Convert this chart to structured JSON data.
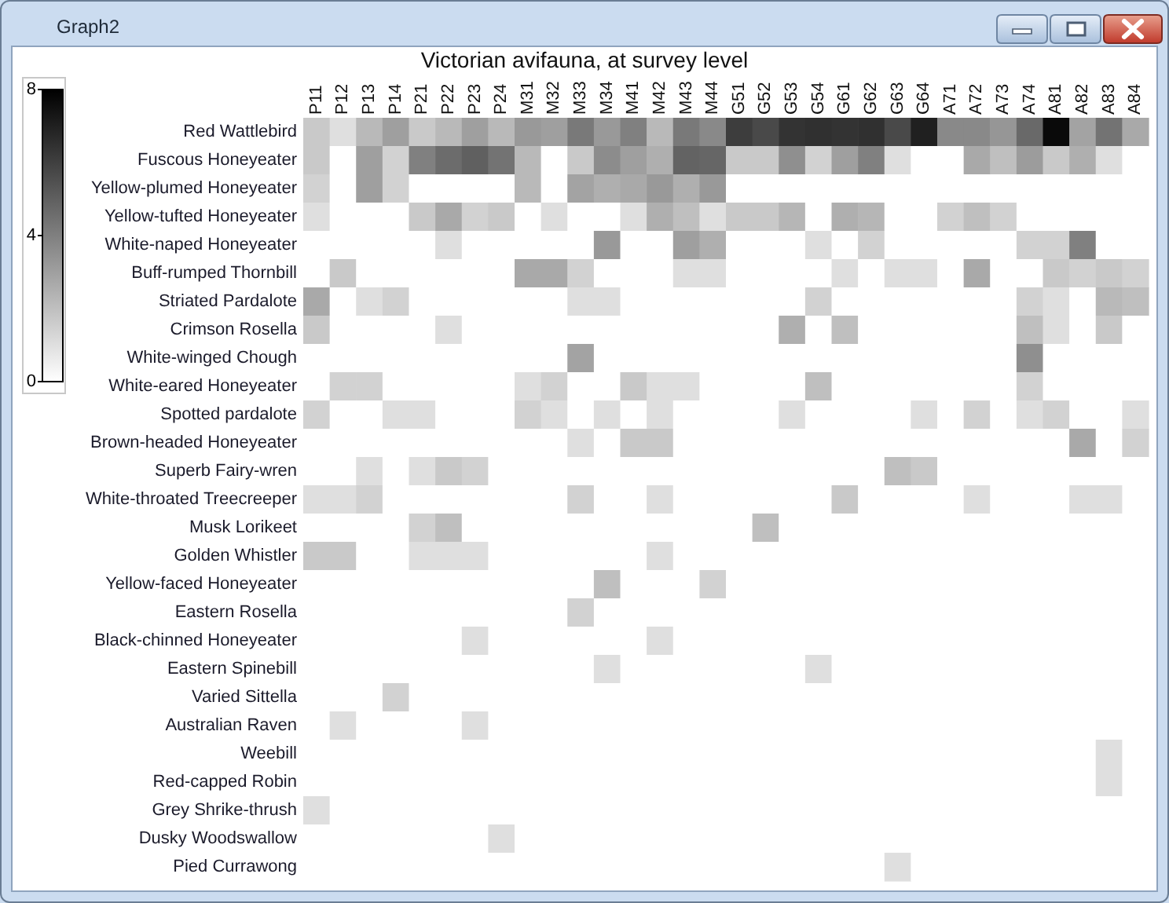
{
  "chart_data": {
    "type": "heatmap",
    "title": "Victorian avifauna, at survey level",
    "annotations": [
      "Graph2"
    ],
    "categories": [
      "P11",
      "P12",
      "P13",
      "P14",
      "P21",
      "P22",
      "P23",
      "P24",
      "M31",
      "M32",
      "M33",
      "M34",
      "M41",
      "M42",
      "M43",
      "M44",
      "G51",
      "G52",
      "G53",
      "G54",
      "G61",
      "G62",
      "G63",
      "G64",
      "A71",
      "A72",
      "A73",
      "A74",
      "A81",
      "A82",
      "A83",
      "A84"
    ],
    "y_categories": [
      "Red Wattlebird",
      "Fuscous Honeyeater",
      "Yellow-plumed Honeyeater",
      "Yellow-tufted Honeyeater",
      "White-naped Honeyeater",
      "Buff-rumped Thornbill",
      "Striated Pardalote",
      "Crimson Rosella",
      "White-winged Chough",
      "White-eared Honeyeater",
      "Spotted pardalote",
      "Brown-headed Honeyeater",
      "Superb Fairy-wren",
      "White-throated Treecreeper",
      "Musk Lorikeet",
      "Golden Whistler",
      "Yellow-faced Honeyeater",
      "Eastern Rosella",
      "Black-chinned Honeyeater",
      "Eastern Spinebill",
      "Varied Sittella",
      "Australian Raven",
      "Weebill",
      "Red-capped Robin",
      "Grey Shrike-thrush",
      "Dusky Woodswallow",
      "Pied Currawong"
    ],
    "cells": [
      [
        1.7,
        1,
        2.2,
        3,
        1.7,
        2.2,
        3,
        2.2,
        3.2,
        3,
        4.2,
        3.2,
        4,
        2.2,
        4.2,
        3.7,
        6.1,
        5.7,
        6.4,
        6.5,
        6.4,
        6.5,
        5.7,
        7,
        3.7,
        3.7,
        3.3,
        4.7,
        7.7,
        2.9,
        4.4,
        2.7
      ],
      [
        1.7,
        0,
        3,
        1.4,
        4,
        4.6,
        5,
        4.4,
        2.2,
        0,
        1.7,
        3.6,
        3,
        2.5,
        4.9,
        4.8,
        1.7,
        1.7,
        3.5,
        1.4,
        3,
        4,
        1,
        0,
        0,
        2.7,
        2,
        3.1,
        1.7,
        2.5,
        1,
        0
      ],
      [
        1.4,
        0,
        3,
        1.4,
        0,
        0,
        0,
        0,
        2.2,
        0,
        2.9,
        2.5,
        2.7,
        3.2,
        2.5,
        3.2,
        0,
        0,
        0,
        0,
        0,
        0,
        0,
        0,
        0,
        0,
        0,
        0,
        0,
        0,
        0,
        0
      ],
      [
        1,
        0,
        0,
        0,
        1.7,
        2.7,
        1.4,
        1.7,
        0,
        1,
        0,
        0,
        1,
        2.5,
        2,
        1,
        1.7,
        1.7,
        2.3,
        0,
        2.5,
        2.3,
        0,
        0,
        1.4,
        2,
        1.4,
        0,
        0,
        0,
        0,
        0
      ],
      [
        0,
        0,
        0,
        0,
        0,
        1,
        0,
        0,
        0,
        0,
        0,
        3.2,
        0,
        0,
        3,
        2.5,
        0,
        0,
        0,
        1,
        0,
        1.4,
        0,
        0,
        0,
        0,
        0,
        1.4,
        1.4,
        4,
        0,
        0
      ],
      [
        0,
        1.7,
        0,
        0,
        0,
        0,
        0,
        0,
        2.7,
        2.7,
        1.4,
        0,
        0,
        0,
        1,
        1,
        0,
        0,
        0,
        0,
        1,
        0,
        1,
        1,
        0,
        2.7,
        0,
        0,
        1.7,
        1.4,
        1.7,
        1.4
      ],
      [
        2.7,
        0,
        1,
        1.4,
        0,
        0,
        0,
        0,
        0,
        0,
        1,
        1,
        0,
        0,
        0,
        0,
        0,
        0,
        0,
        1.4,
        0,
        0,
        0,
        0,
        0,
        0,
        0,
        1.4,
        1,
        0,
        2.2,
        2
      ],
      [
        1.7,
        0,
        0,
        0,
        0,
        1,
        0,
        0,
        0,
        0,
        0,
        0,
        0,
        0,
        0,
        0,
        0,
        0,
        2.5,
        0,
        2,
        0,
        0,
        0,
        0,
        0,
        0,
        2,
        1,
        0,
        1.7,
        0
      ],
      [
        0,
        0,
        0,
        0,
        0,
        0,
        0,
        0,
        0,
        0,
        2.9,
        0,
        0,
        0,
        0,
        0,
        0,
        0,
        0,
        0,
        0,
        0,
        0,
        0,
        0,
        0,
        0,
        3.5,
        0,
        0,
        0,
        0
      ],
      [
        0,
        1.4,
        1.4,
        0,
        0,
        0,
        0,
        0,
        1,
        1.4,
        0,
        0,
        1.7,
        1,
        1,
        0,
        0,
        0,
        0,
        2,
        0,
        0,
        0,
        0,
        0,
        0,
        0,
        1.4,
        0,
        0,
        0,
        0
      ],
      [
        1.4,
        0,
        0,
        1,
        1,
        0,
        0,
        0,
        1.4,
        1,
        0,
        1,
        0,
        1,
        0,
        0,
        0,
        0,
        1,
        0,
        0,
        0,
        0,
        1,
        0,
        1.4,
        0,
        1,
        1.4,
        0,
        0,
        1
      ],
      [
        0,
        0,
        0,
        0,
        0,
        0,
        0,
        0,
        0,
        0,
        1,
        0,
        1.7,
        1.7,
        0,
        0,
        0,
        0,
        0,
        0,
        0,
        0,
        0,
        0,
        0,
        0,
        0,
        0,
        0,
        2.7,
        0,
        1.4
      ],
      [
        0,
        0,
        1,
        0,
        1,
        1.7,
        1.4,
        0,
        0,
        0,
        0,
        0,
        0,
        0,
        0,
        0,
        0,
        0,
        0,
        0,
        0,
        0,
        2,
        1.7,
        0,
        0,
        0,
        0,
        0,
        0,
        0,
        0
      ],
      [
        1,
        1,
        1.4,
        0,
        0,
        0,
        0,
        0,
        0,
        0,
        1.4,
        0,
        0,
        1,
        0,
        0,
        0,
        0,
        0,
        0,
        1.7,
        0,
        0,
        0,
        0,
        1,
        0,
        0,
        0,
        1,
        1,
        0
      ],
      [
        0,
        0,
        0,
        0,
        1.4,
        2,
        0,
        0,
        0,
        0,
        0,
        0,
        0,
        0,
        0,
        0,
        0,
        2,
        0,
        0,
        0,
        0,
        0,
        0,
        0,
        0,
        0,
        0,
        0,
        0,
        0,
        0
      ],
      [
        1.7,
        1.7,
        0,
        0,
        1,
        1,
        1,
        0,
        0,
        0,
        0,
        0,
        0,
        1,
        0,
        0,
        0,
        0,
        0,
        0,
        0,
        0,
        0,
        0,
        0,
        0,
        0,
        0,
        0,
        0,
        0,
        0
      ],
      [
        0,
        0,
        0,
        0,
        0,
        0,
        0,
        0,
        0,
        0,
        0,
        2,
        0,
        0,
        0,
        1.4,
        0,
        0,
        0,
        0,
        0,
        0,
        0,
        0,
        0,
        0,
        0,
        0,
        0,
        0,
        0,
        0
      ],
      [
        0,
        0,
        0,
        0,
        0,
        0,
        0,
        0,
        0,
        0,
        1.4,
        0,
        0,
        0,
        0,
        0,
        0,
        0,
        0,
        0,
        0,
        0,
        0,
        0,
        0,
        0,
        0,
        0,
        0,
        0,
        0,
        0
      ],
      [
        0,
        0,
        0,
        0,
        0,
        0,
        1,
        0,
        0,
        0,
        0,
        0,
        0,
        1,
        0,
        0,
        0,
        0,
        0,
        0,
        0,
        0,
        0,
        0,
        0,
        0,
        0,
        0,
        0,
        0,
        0,
        0
      ],
      [
        0,
        0,
        0,
        0,
        0,
        0,
        0,
        0,
        0,
        0,
        0,
        1,
        0,
        0,
        0,
        0,
        0,
        0,
        0,
        1,
        0,
        0,
        0,
        0,
        0,
        0,
        0,
        0,
        0,
        0,
        0,
        0
      ],
      [
        0,
        0,
        0,
        1.4,
        0,
        0,
        0,
        0,
        0,
        0,
        0,
        0,
        0,
        0,
        0,
        0,
        0,
        0,
        0,
        0,
        0,
        0,
        0,
        0,
        0,
        0,
        0,
        0,
        0,
        0,
        0,
        0
      ],
      [
        0,
        1,
        0,
        0,
        0,
        0,
        1,
        0,
        0,
        0,
        0,
        0,
        0,
        0,
        0,
        0,
        0,
        0,
        0,
        0,
        0,
        0,
        0,
        0,
        0,
        0,
        0,
        0,
        0,
        0,
        0,
        0
      ],
      [
        0,
        0,
        0,
        0,
        0,
        0,
        0,
        0,
        0,
        0,
        0,
        0,
        0,
        0,
        0,
        0,
        0,
        0,
        0,
        0,
        0,
        0,
        0,
        0,
        0,
        0,
        0,
        0,
        0,
        0,
        1,
        0
      ],
      [
        0,
        0,
        0,
        0,
        0,
        0,
        0,
        0,
        0,
        0,
        0,
        0,
        0,
        0,
        0,
        0,
        0,
        0,
        0,
        0,
        0,
        0,
        0,
        0,
        0,
        0,
        0,
        0,
        0,
        0,
        1,
        0
      ],
      [
        1,
        0,
        0,
        0,
        0,
        0,
        0,
        0,
        0,
        0,
        0,
        0,
        0,
        0,
        0,
        0,
        0,
        0,
        0,
        0,
        0,
        0,
        0,
        0,
        0,
        0,
        0,
        0,
        0,
        0,
        0,
        0
      ],
      [
        0,
        0,
        0,
        0,
        0,
        0,
        0,
        1,
        0,
        0,
        0,
        0,
        0,
        0,
        0,
        0,
        0,
        0,
        0,
        0,
        0,
        0,
        0,
        0,
        0,
        0,
        0,
        0,
        0,
        0,
        0,
        0
      ],
      [
        0,
        0,
        0,
        0,
        0,
        0,
        0,
        0,
        0,
        0,
        0,
        0,
        0,
        0,
        0,
        0,
        0,
        0,
        0,
        0,
        0,
        0,
        1,
        0,
        0,
        0,
        0,
        0,
        0,
        0,
        0,
        0
      ]
    ],
    "clim": [
      0,
      8
    ],
    "cticks": [
      0,
      4,
      8
    ]
  }
}
